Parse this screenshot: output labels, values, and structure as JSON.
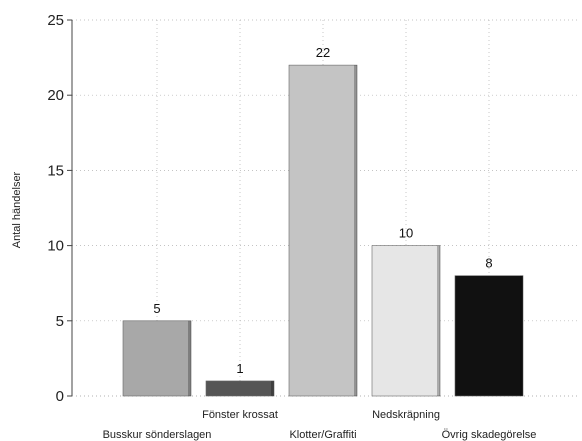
{
  "chart_data": {
    "type": "bar",
    "title": "",
    "xlabel": "",
    "ylabel": "Antal händelser",
    "ylim": [
      0,
      25
    ],
    "yticks": [
      0,
      5,
      10,
      15,
      20,
      25
    ],
    "grid": true,
    "categories": [
      "Busskur sönderslagen",
      "Fönster krossat",
      "Klotter/Graffiti",
      "Nedskräpning",
      "Övrig skadegörelse"
    ],
    "values": [
      5,
      1,
      22,
      10,
      8
    ],
    "data_labels": [
      "5",
      "1",
      "22",
      "10",
      "8"
    ],
    "bar_colors": [
      "#a8a8a8",
      "#555555",
      "#c4c4c4",
      "#e6e6e6",
      "#111111"
    ]
  }
}
